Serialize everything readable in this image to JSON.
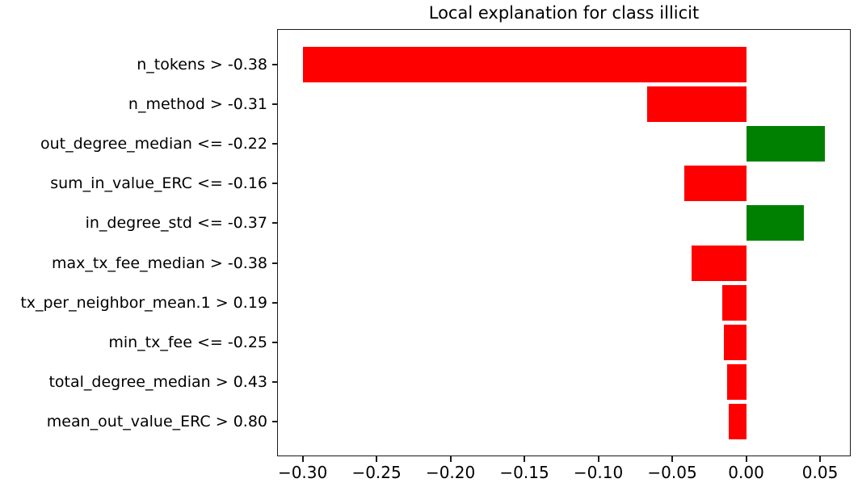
{
  "figure": {
    "title": "Local explanation for class illicit"
  },
  "colors": {
    "positive_bar": "#008000",
    "negative_bar": "#ff0000",
    "axis": "#1a1a1a",
    "text": "#000000",
    "background": "#ffffff"
  },
  "chart_data": {
    "type": "bar",
    "orientation": "horizontal",
    "title": "Local explanation for class illicit",
    "categories": [
      "n_tokens > -0.38",
      "n_method > -0.31",
      "out_degree_median <= -0.22",
      "sum_in_value_ERC <= -0.16",
      "in_degree_std <= -0.37",
      "max_tx_fee_median > -0.38",
      "tx_per_neighbor_mean.1 > 0.19",
      "min_tx_fee <= -0.25",
      "total_degree_median > 0.43",
      "mean_out_value_ERC > 0.80"
    ],
    "values": [
      -0.3,
      -0.067,
      0.053,
      -0.042,
      0.039,
      -0.037,
      -0.016,
      -0.015,
      -0.013,
      -0.012
    ],
    "bar_colors": [
      "negative",
      "negative",
      "positive",
      "negative",
      "positive",
      "negative",
      "negative",
      "negative",
      "negative",
      "negative"
    ],
    "xlim": [
      -0.317,
      0.071
    ],
    "xticks": [
      -0.3,
      -0.25,
      -0.2,
      -0.15,
      -0.1,
      -0.05,
      0.0,
      0.05
    ],
    "xtick_labels": [
      "−0.30",
      "−0.25",
      "−0.20",
      "−0.15",
      "−0.10",
      "−0.05",
      "0.00",
      "0.05"
    ],
    "grid": false,
    "legend": null
  }
}
